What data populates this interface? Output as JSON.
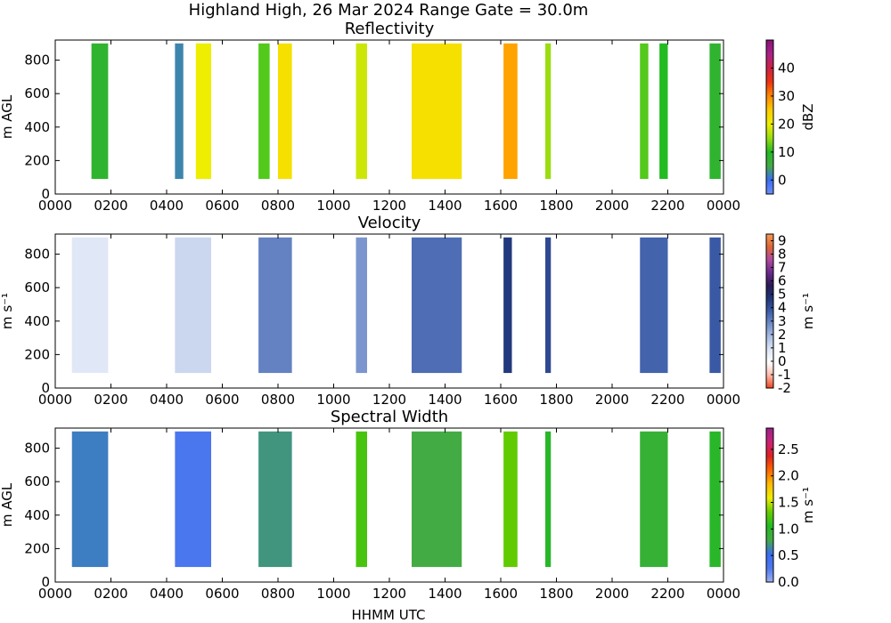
{
  "figure": {
    "suptitle": "Highland High, 26 Mar 2024 Range Gate = 30.0m",
    "xlabel": "HHMM UTC"
  },
  "chart_data": [
    {
      "type": "heatmap",
      "title": "Reflectivity",
      "xlabel": "",
      "ylabel": "m AGL",
      "x_ticks": [
        "0000",
        "0200",
        "0400",
        "0600",
        "0800",
        "1000",
        "1200",
        "1400",
        "1600",
        "1800",
        "2000",
        "2200",
        "0000"
      ],
      "y_ticks": [
        "0",
        "200",
        "400",
        "600",
        "800"
      ],
      "xlim_hours": [
        0,
        24
      ],
      "ylim_m": [
        0,
        920
      ],
      "colorbar": {
        "label": "dBZ",
        "min": -5,
        "max": 50,
        "ticks": [
          "0",
          "10",
          "20",
          "30",
          "40"
        ],
        "tick_values": [
          0,
          10,
          20,
          30,
          40
        ]
      },
      "echo_columns": [
        {
          "start": 1.3,
          "end": 1.9,
          "base": 90,
          "top": 900,
          "value": 8
        },
        {
          "start": 4.3,
          "end": 4.6,
          "base": 90,
          "top": 900,
          "value": 2
        },
        {
          "start": 5.05,
          "end": 5.6,
          "base": 90,
          "top": 900,
          "value": 20
        },
        {
          "start": 7.3,
          "end": 7.7,
          "base": 90,
          "top": 900,
          "value": 12
        },
        {
          "start": 8.0,
          "end": 8.5,
          "base": 90,
          "top": 900,
          "value": 22
        },
        {
          "start": 10.8,
          "end": 11.2,
          "base": 90,
          "top": 900,
          "value": 18
        },
        {
          "start": 12.8,
          "end": 14.6,
          "base": 90,
          "top": 900,
          "value": 22
        },
        {
          "start": 16.1,
          "end": 16.6,
          "base": 90,
          "top": 900,
          "value": 28
        },
        {
          "start": 17.6,
          "end": 17.8,
          "base": 90,
          "top": 900,
          "value": 15
        },
        {
          "start": 21.0,
          "end": 21.3,
          "base": 90,
          "top": 900,
          "value": 12
        },
        {
          "start": 21.7,
          "end": 22.0,
          "base": 90,
          "top": 900,
          "value": 10
        },
        {
          "start": 23.5,
          "end": 23.9,
          "base": 90,
          "top": 900,
          "value": 8
        }
      ]
    },
    {
      "type": "heatmap",
      "title": "Velocity",
      "xlabel": "",
      "ylabel": "m s⁻¹",
      "x_ticks": [
        "0000",
        "0200",
        "0400",
        "0600",
        "0800",
        "1000",
        "1200",
        "1400",
        "1600",
        "1800",
        "2000",
        "2200",
        "0000"
      ],
      "y_ticks": [
        "0",
        "200",
        "400",
        "600",
        "800"
      ],
      "xlim_hours": [
        0,
        24
      ],
      "ylim_m": [
        0,
        920
      ],
      "colorbar": {
        "label": "m s⁻¹",
        "min": -2,
        "max": 9.5,
        "ticks": [
          "-2",
          "-1",
          "0",
          "1",
          "2",
          "3",
          "4",
          "5",
          "6",
          "7",
          "8",
          "9"
        ],
        "tick_values": [
          -2,
          -1,
          0,
          1,
          2,
          3,
          4,
          5,
          6,
          7,
          8,
          9
        ]
      },
      "echo_columns": [
        {
          "start": 0.6,
          "end": 1.9,
          "base": 90,
          "top": 900,
          "value": 0.8
        },
        {
          "start": 4.3,
          "end": 5.6,
          "base": 90,
          "top": 900,
          "value": 1.2
        },
        {
          "start": 7.3,
          "end": 8.5,
          "base": 90,
          "top": 900,
          "value": 3.0
        },
        {
          "start": 10.8,
          "end": 11.2,
          "base": 90,
          "top": 900,
          "value": 2.6
        },
        {
          "start": 12.8,
          "end": 14.6,
          "base": 90,
          "top": 900,
          "value": 3.4
        },
        {
          "start": 16.1,
          "end": 16.4,
          "base": 90,
          "top": 900,
          "value": 4.6
        },
        {
          "start": 17.6,
          "end": 17.8,
          "base": 90,
          "top": 900,
          "value": 4.2
        },
        {
          "start": 21.0,
          "end": 22.0,
          "base": 90,
          "top": 900,
          "value": 3.6
        },
        {
          "start": 23.5,
          "end": 23.9,
          "base": 90,
          "top": 900,
          "value": 3.8
        }
      ]
    },
    {
      "type": "heatmap",
      "title": "Spectral Width",
      "xlabel": "HHMM UTC",
      "ylabel": "m AGL",
      "x_ticks": [
        "0000",
        "0200",
        "0400",
        "0600",
        "0800",
        "1000",
        "1200",
        "1400",
        "1600",
        "1800",
        "2000",
        "2200",
        "0000"
      ],
      "y_ticks": [
        "0",
        "200",
        "400",
        "600",
        "800"
      ],
      "xlim_hours": [
        0,
        24
      ],
      "ylim_m": [
        0,
        920
      ],
      "colorbar": {
        "label": "m s⁻¹",
        "min": 0,
        "max": 2.9,
        "ticks": [
          "0.0",
          "0.5",
          "1.0",
          "1.5",
          "2.0",
          "2.5"
        ],
        "tick_values": [
          0,
          0.5,
          1.0,
          1.5,
          2.0,
          2.5
        ]
      },
      "echo_columns": [
        {
          "start": 0.6,
          "end": 1.9,
          "base": 90,
          "top": 900,
          "value": 0.6
        },
        {
          "start": 4.3,
          "end": 5.6,
          "base": 90,
          "top": 900,
          "value": 0.3
        },
        {
          "start": 7.3,
          "end": 8.5,
          "base": 90,
          "top": 900,
          "value": 0.7
        },
        {
          "start": 10.8,
          "end": 11.2,
          "base": 90,
          "top": 900,
          "value": 1.2
        },
        {
          "start": 12.8,
          "end": 14.6,
          "base": 90,
          "top": 900,
          "value": 0.8
        },
        {
          "start": 16.1,
          "end": 16.6,
          "base": 90,
          "top": 900,
          "value": 1.3
        },
        {
          "start": 17.6,
          "end": 17.8,
          "base": 90,
          "top": 900,
          "value": 1.0
        },
        {
          "start": 21.0,
          "end": 22.0,
          "base": 90,
          "top": 900,
          "value": 0.9
        },
        {
          "start": 23.5,
          "end": 23.9,
          "base": 90,
          "top": 900,
          "value": 1.0
        }
      ]
    }
  ]
}
